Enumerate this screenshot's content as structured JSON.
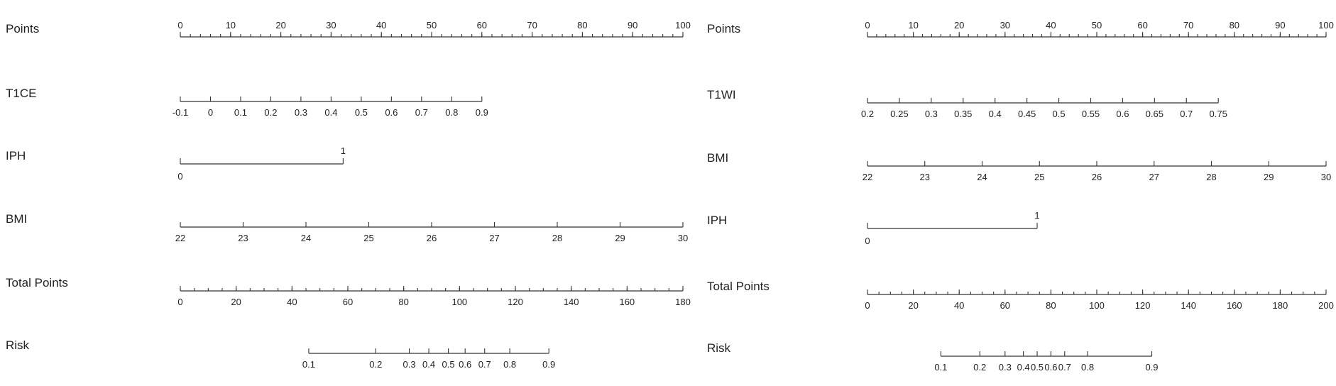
{
  "chart_data": [
    {
      "type": "nomogram",
      "rows": [
        {
          "label": "Points",
          "kind": "points",
          "ticks": [
            "0",
            "10",
            "20",
            "30",
            "40",
            "50",
            "60",
            "70",
            "80",
            "90",
            "100"
          ],
          "min": 0,
          "max": 100,
          "minorStep": 2
        },
        {
          "label": "T1CE",
          "kind": "scale",
          "ticks": [
            "-0.1",
            "0",
            "0.1",
            "0.2",
            "0.3",
            "0.4",
            "0.5",
            "0.6",
            "0.7",
            "0.8",
            "0.9"
          ],
          "valueRange": [
            -0.1,
            0.9
          ],
          "pointsRange": [
            0,
            60
          ]
        },
        {
          "label": "IPH",
          "kind": "binary",
          "ticks": [
            "0",
            "1"
          ],
          "pointsRange": [
            0,
            32.4
          ]
        },
        {
          "label": "BMI",
          "kind": "scale",
          "ticks": [
            "22",
            "23",
            "24",
            "25",
            "26",
            "27",
            "28",
            "29",
            "30"
          ],
          "valueRange": [
            22,
            30
          ],
          "pointsRange": [
            0,
            100
          ]
        },
        {
          "label": "Total Points",
          "kind": "total",
          "ticks": [
            "0",
            "20",
            "40",
            "60",
            "80",
            "100",
            "120",
            "140",
            "160",
            "180"
          ],
          "min": 0,
          "max": 180,
          "minorStep": 5
        },
        {
          "label": "Risk",
          "kind": "risk",
          "ticks": [
            "0.1",
            "0.2",
            "0.3",
            "0.4",
            "0.5",
            "0.6",
            "0.7",
            "0.8",
            "0.9"
          ],
          "totalPoints": [
            46,
            70,
            82,
            89,
            96,
            102,
            109,
            118,
            132
          ]
        }
      ]
    },
    {
      "type": "nomogram",
      "rows": [
        {
          "label": "Points",
          "kind": "points",
          "ticks": [
            "0",
            "10",
            "20",
            "30",
            "40",
            "50",
            "60",
            "70",
            "80",
            "90",
            "100"
          ],
          "min": 0,
          "max": 100,
          "minorStep": 2
        },
        {
          "label": "T1WI",
          "kind": "scale",
          "ticks": [
            "0.2",
            "0.25",
            "0.3",
            "0.35",
            "0.4",
            "0.45",
            "0.5",
            "0.55",
            "0.6",
            "0.65",
            "0.7",
            "0.75"
          ],
          "valueRange": [
            0.2,
            0.75
          ],
          "pointsRange": [
            0,
            76.5
          ]
        },
        {
          "label": "BMI",
          "kind": "scale",
          "ticks": [
            "22",
            "23",
            "24",
            "25",
            "26",
            "27",
            "28",
            "29",
            "30"
          ],
          "valueRange": [
            22,
            30
          ],
          "pointsRange": [
            0,
            100
          ]
        },
        {
          "label": "IPH",
          "kind": "binary",
          "ticks": [
            "0",
            "1"
          ],
          "pointsRange": [
            0,
            37
          ]
        },
        {
          "label": "Total Points",
          "kind": "total",
          "ticks": [
            "0",
            "20",
            "40",
            "60",
            "80",
            "100",
            "120",
            "140",
            "160",
            "180",
            "200"
          ],
          "min": 0,
          "max": 200,
          "minorStep": 5
        },
        {
          "label": "Risk",
          "kind": "risk",
          "ticks": [
            "0.1",
            "0.2",
            "0.3",
            "0.4",
            "0.5",
            "0.6",
            "0.7",
            "0.8",
            "0.9"
          ],
          "totalPoints": [
            32,
            49,
            60,
            68,
            74,
            80,
            86,
            96,
            124
          ]
        }
      ]
    }
  ]
}
